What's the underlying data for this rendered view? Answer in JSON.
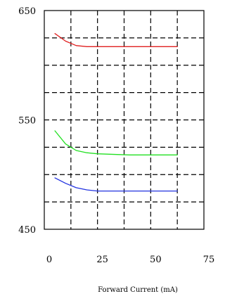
{
  "chart_data": {
    "type": "line",
    "title": "",
    "xlabel": "Forward Current (mA)",
    "ylabel": "",
    "xlim": [
      0,
      75
    ],
    "ylim": [
      450,
      650
    ],
    "x_ticks": [
      0,
      25,
      50,
      75
    ],
    "y_ticks": [
      450,
      550,
      650
    ],
    "y_tick_labels": [
      "450",
      "550",
      "650"
    ],
    "x_gridlines": [
      12.5,
      25,
      37.5,
      50,
      62.5
    ],
    "y_gridlines": [
      475,
      500,
      525,
      550,
      575,
      600,
      625
    ],
    "grid": true,
    "grid_style": "dashed",
    "legend": "none",
    "series": [
      {
        "color": "#e02020",
        "x": [
          5,
          10,
          15,
          20,
          25,
          40,
          55,
          62.5
        ],
        "y": [
          629,
          622,
          618,
          617,
          617,
          617,
          617,
          617
        ]
      },
      {
        "color": "#22e022",
        "x": [
          5,
          10,
          15,
          20,
          25,
          40,
          55,
          62.5
        ],
        "y": [
          540,
          528,
          522,
          520,
          519,
          518,
          518,
          518
        ]
      },
      {
        "color": "#2233e0",
        "x": [
          5,
          10,
          15,
          20,
          25,
          40,
          55,
          62.5
        ],
        "y": [
          497,
          492,
          488,
          486,
          485,
          485,
          485,
          485
        ]
      }
    ]
  }
}
